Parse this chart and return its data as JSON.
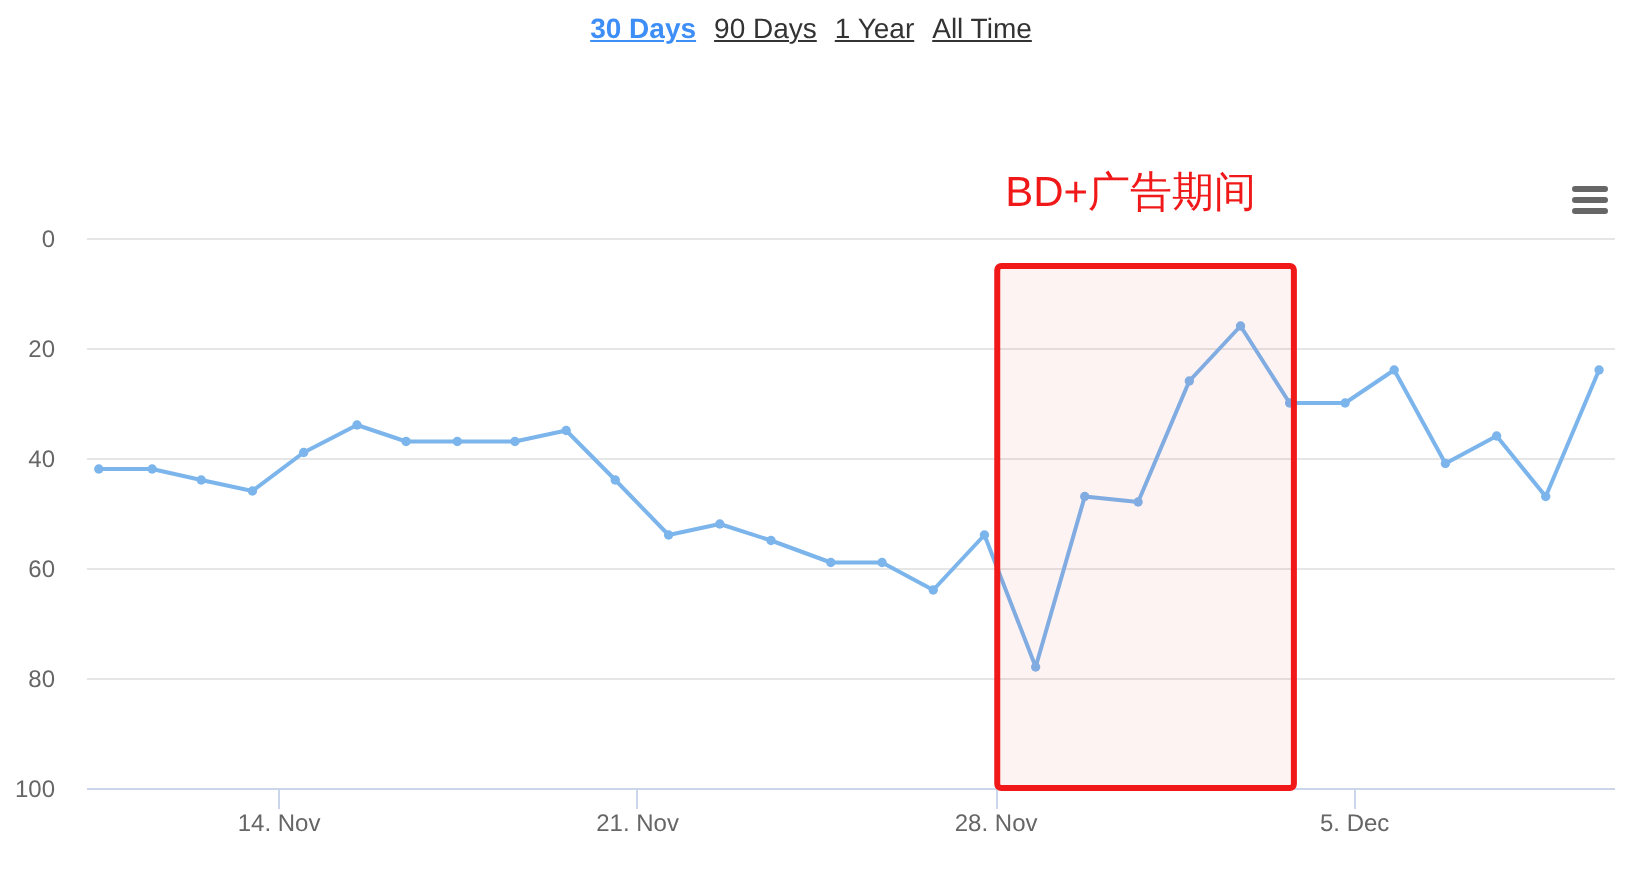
{
  "chart_data": {
    "type": "line",
    "x": [
      "--11-10T12:00",
      "--11-11T13:00",
      "--11-12T12:00",
      "--11-13T12:00",
      "--11-14T12:00",
      "--11-15T13:00",
      "--11-16T12:00",
      "--11-17T12:00",
      "--11-18T15:00",
      "--11-19T15:00",
      "--11-20T14:00",
      "--11-21T15:00",
      "--11-22T15:00",
      "--11-23T15:00",
      "--11-24T19:00",
      "--11-25T19:00",
      "--11-26T19:00",
      "--11-27T19:00",
      "--11-28T19:00",
      "--11-29T18:00",
      "--11-30T19:00",
      "--12-01T19:00",
      "--12-02T19:00",
      "--12-03T18:00",
      "--12-04T20:00",
      "--12-05T19:00",
      "--12-06T19:00",
      "--12-07T19:00",
      "--12-08T18:00",
      "--12-09T19:00"
    ],
    "series": [
      {
        "color": "#7cb5ec",
        "values": [
          42,
          42,
          44,
          46,
          39,
          34,
          37,
          37,
          37,
          35,
          44,
          54,
          52,
          55,
          59,
          59,
          64,
          54,
          78,
          47,
          48,
          26,
          16,
          30,
          30,
          24,
          41,
          36,
          47,
          24
        ]
      }
    ],
    "xlim": [
      "--11-10T06:00",
      "--12-10T02:00"
    ],
    "xticks": [
      {
        "value": "--11-14",
        "label": "14. Nov"
      },
      {
        "value": "--11-21",
        "label": "21. Nov"
      },
      {
        "value": "--11-28",
        "label": "28. Nov"
      },
      {
        "value": "--12-05",
        "label": "5. Dec"
      }
    ],
    "ylim": [
      100,
      0
    ],
    "yticks": [
      0,
      20,
      40,
      60,
      80,
      100
    ],
    "grid": "y",
    "marker": "circle",
    "bands": [
      {
        "axis": "x",
        "from": "--11-28T01:00",
        "to": "--12-03T20:00",
        "label": "BD+广告期间",
        "color": "#f01818"
      }
    ],
    "annotations": [
      "30 Days",
      "90 Days",
      "1 Year",
      "All Time"
    ]
  }
}
